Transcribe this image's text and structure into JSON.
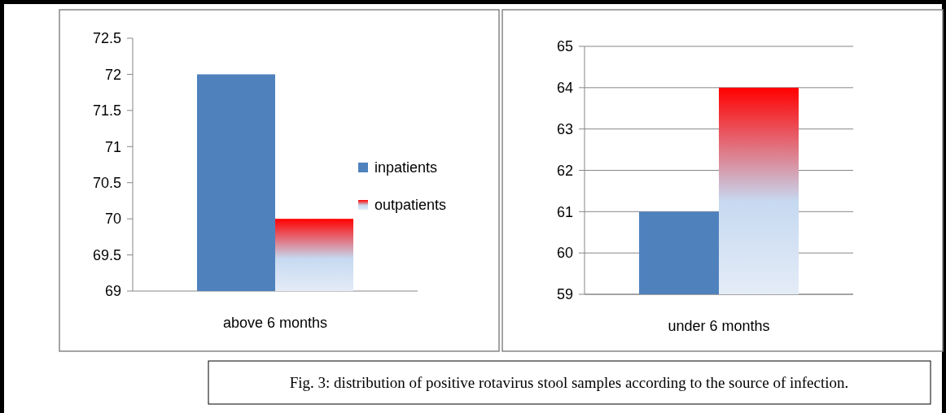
{
  "chart_data": [
    {
      "type": "bar",
      "categories": [
        "above 6 months"
      ],
      "series": [
        {
          "name": "inpatients",
          "color": "#4f81bd",
          "values": [
            72
          ]
        },
        {
          "name": "outpatients",
          "color": "#ff0000",
          "values": [
            70
          ]
        }
      ],
      "ylim": [
        69,
        72.5
      ],
      "yticks": [
        69,
        69.5,
        70,
        70.5,
        71,
        71.5,
        72,
        72.5
      ],
      "grid": false,
      "legend": "right"
    },
    {
      "type": "bar",
      "categories": [
        "under 6 months"
      ],
      "series": [
        {
          "color": "#4f81bd",
          "values": [
            61
          ]
        },
        {
          "color": "#ff0000",
          "values": [
            64
          ]
        }
      ],
      "ylim": [
        59,
        65
      ],
      "yticks": [
        59,
        60,
        61,
        62,
        63,
        64,
        65
      ],
      "grid": true,
      "annotations": [
        "Fig. 3: distribution of positive rotavirus stool samples according to the source of infection."
      ]
    }
  ]
}
